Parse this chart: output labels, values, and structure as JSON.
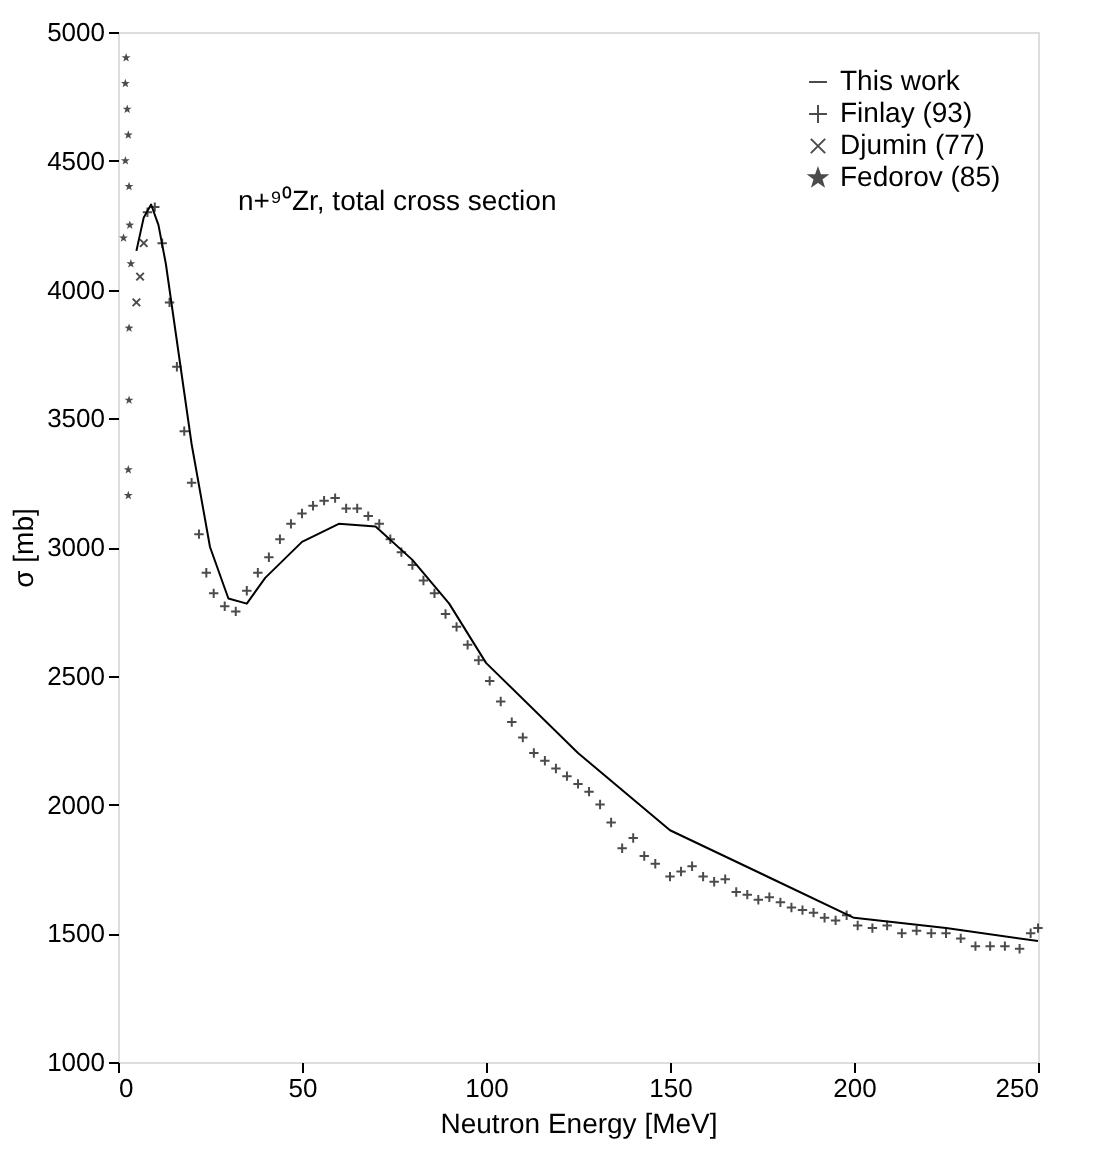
{
  "chart_data": {
    "type": "scatter",
    "xlabel": "Neutron Energy [MeV]",
    "ylabel": "σ [mb]",
    "annotations": [
      "n+⁹⁰Zr, total cross section"
    ],
    "xlim": [
      0,
      250
    ],
    "xticks": [
      0,
      50,
      100,
      150,
      200,
      250
    ],
    "ylim": [
      1000,
      5000
    ],
    "yticks": [
      1000,
      1500,
      2000,
      2500,
      3000,
      3500,
      4000,
      4500,
      5000
    ],
    "grid": false,
    "legend": "top right",
    "series": [
      {
        "name": "This work",
        "type": "line",
        "color": "#000000",
        "marker": "none",
        "line_style": "solid",
        "x": [
          5,
          7,
          9,
          11,
          13,
          15,
          20,
          25,
          30,
          35,
          40,
          50,
          60,
          70,
          80,
          90,
          100,
          125,
          150,
          175,
          200,
          225,
          250
        ],
        "values": [
          4150,
          4280,
          4330,
          4250,
          4100,
          3900,
          3400,
          3000,
          2800,
          2780,
          2880,
          3020,
          3090,
          3080,
          2950,
          2780,
          2550,
          2200,
          1900,
          1730,
          1560,
          1520,
          1470
        ]
      },
      {
        "name": "Finlay (93)",
        "color": "#000000",
        "marker": "cross",
        "x": [
          8,
          10,
          12,
          14,
          16,
          18,
          20,
          22,
          24,
          26,
          29,
          32,
          35,
          38,
          41,
          44,
          47,
          50,
          53,
          56,
          59,
          62,
          65,
          68,
          71,
          74,
          77,
          80,
          83,
          86,
          89,
          92,
          95,
          98,
          101,
          104,
          107,
          110,
          113,
          116,
          119,
          122,
          125,
          128,
          131,
          134,
          137,
          140,
          143,
          146,
          150,
          153,
          156,
          159,
          162,
          165,
          168,
          171,
          174,
          177,
          180,
          183,
          186,
          189,
          192,
          195,
          198,
          201,
          205,
          209,
          213,
          217,
          221,
          225,
          229,
          233,
          237,
          241,
          245,
          248,
          250
        ],
        "values": [
          4300,
          4320,
          4180,
          3950,
          3700,
          3450,
          3250,
          3050,
          2900,
          2820,
          2770,
          2750,
          2830,
          2900,
          2960,
          3030,
          3090,
          3130,
          3160,
          3180,
          3190,
          3150,
          3150,
          3120,
          3090,
          3030,
          2980,
          2930,
          2870,
          2820,
          2740,
          2690,
          2620,
          2560,
          2480,
          2400,
          2320,
          2260,
          2200,
          2170,
          2140,
          2110,
          2080,
          2050,
          2000,
          1930,
          1830,
          1870,
          1800,
          1770,
          1720,
          1740,
          1760,
          1720,
          1700,
          1710,
          1660,
          1650,
          1630,
          1640,
          1620,
          1600,
          1590,
          1580,
          1560,
          1550,
          1570,
          1530,
          1520,
          1530,
          1500,
          1510,
          1500,
          1500,
          1480,
          1450,
          1450,
          1450,
          1440,
          1500,
          1520
        ]
      },
      {
        "name": "Djumin (77)",
        "color": "#000000",
        "marker": "x",
        "x": [
          5,
          6,
          7
        ],
        "values": [
          3950,
          4050,
          4180
        ]
      },
      {
        "name": "Fedorov (85)",
        "color": "#000000",
        "marker": "star",
        "x": [
          1.5,
          2,
          2,
          2.2,
          2.5,
          2.8,
          3,
          3.2,
          3.5,
          3,
          3,
          2.8,
          2.8
        ],
        "values": [
          4200,
          4500,
          4800,
          4900,
          4700,
          4600,
          4400,
          4250,
          4100,
          3850,
          3570,
          3300,
          3200
        ]
      }
    ]
  }
}
